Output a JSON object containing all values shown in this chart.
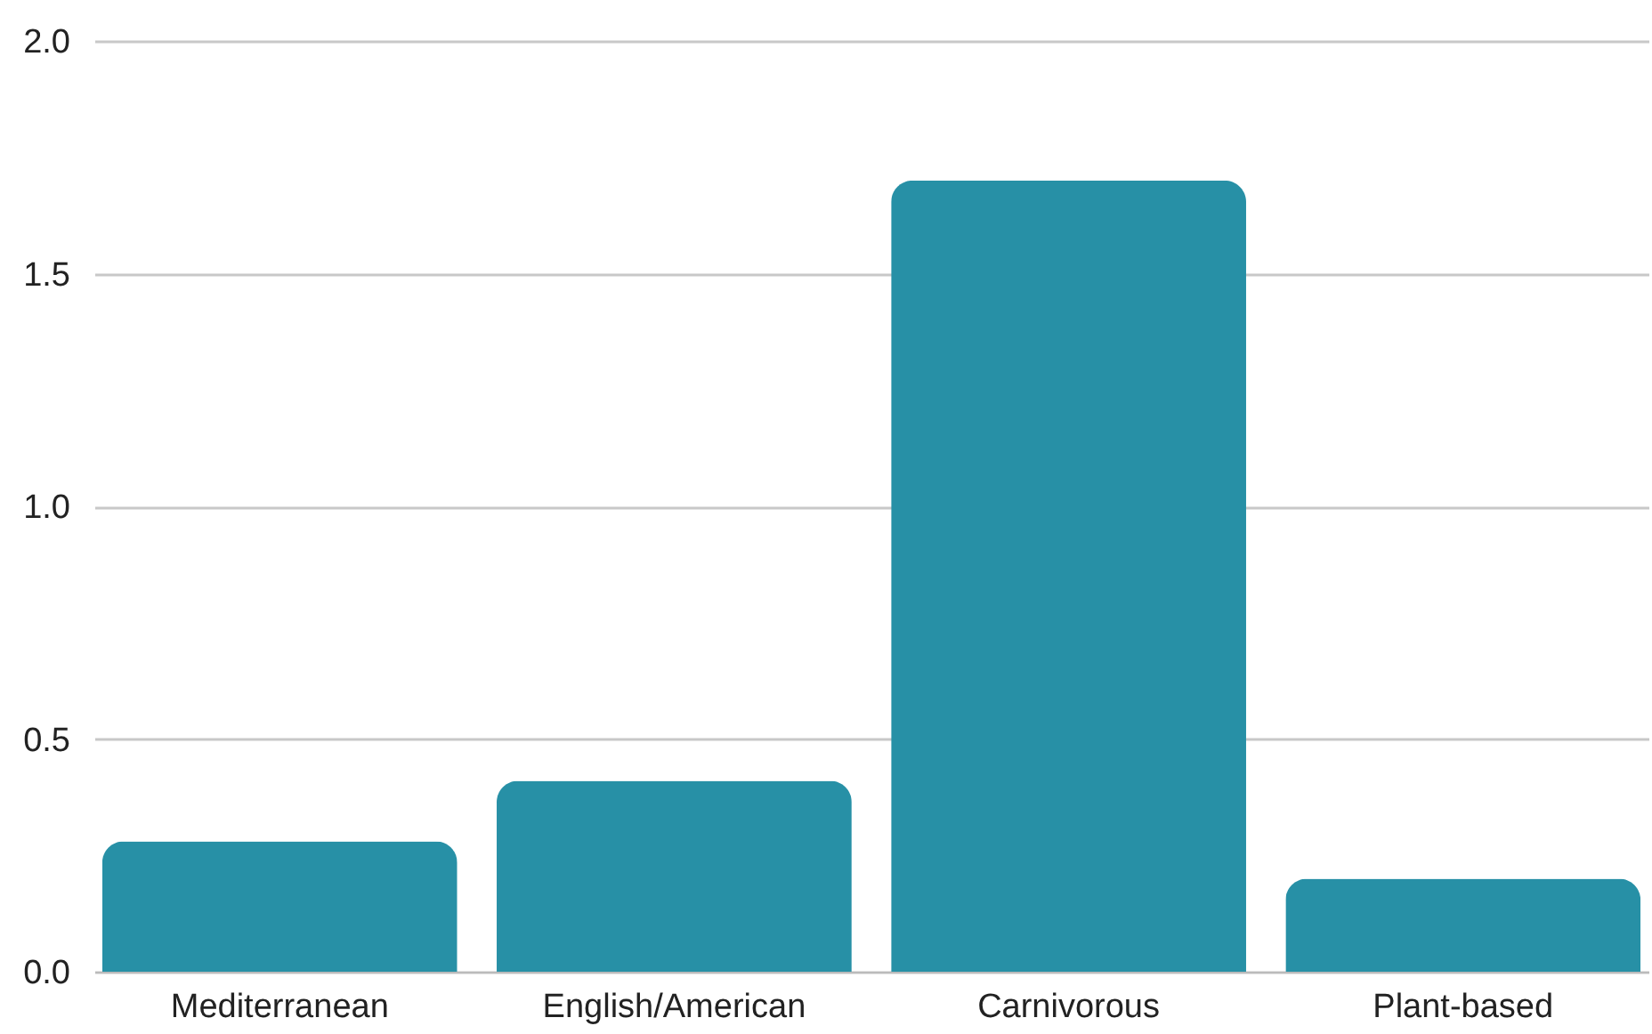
{
  "chart_data": {
    "type": "bar",
    "categories": [
      "Mediterranean",
      "English/American",
      "Carnivorous",
      "Plant-based"
    ],
    "values": [
      0.28,
      0.41,
      1.7,
      0.2
    ],
    "color": "#2790a6",
    "ylim": [
      0,
      2.0
    ],
    "yticks": [
      {
        "value": 0,
        "label": "0.0"
      },
      {
        "value": 0.5,
        "label": "0.5"
      },
      {
        "value": 1.0,
        "label": "1.0"
      },
      {
        "value": 1.5,
        "label": "1.5"
      },
      {
        "value": 2.0,
        "label": "2.0"
      }
    ],
    "grid": "y"
  }
}
